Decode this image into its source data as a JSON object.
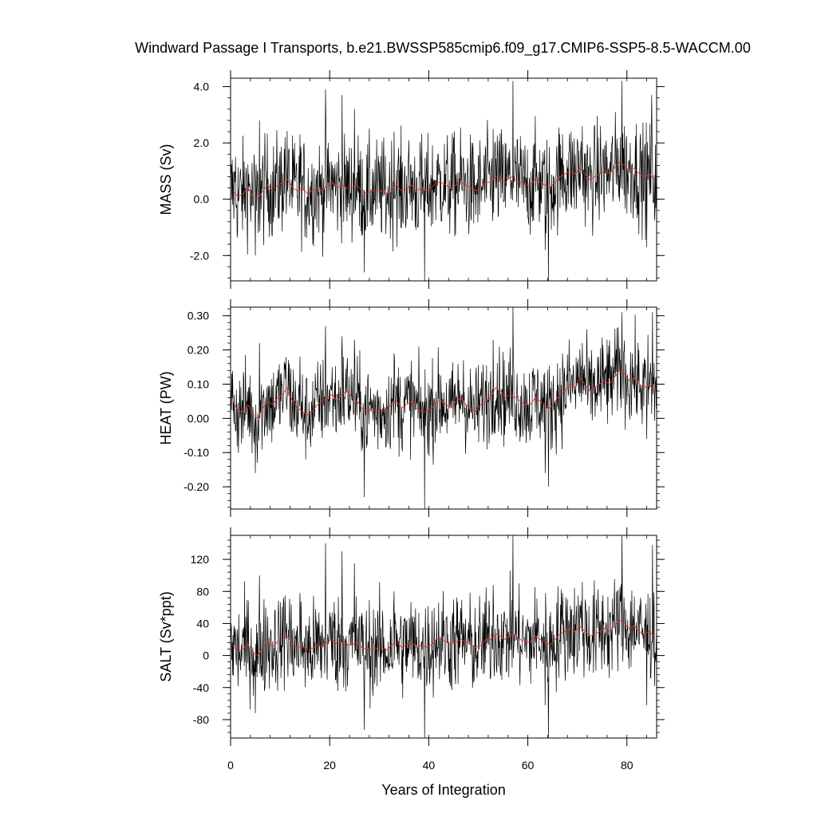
{
  "chart_data": {
    "title": "Windward Passage I Transports, b.e21.BWSSP585cmip6.f09_g17.CMIP6-SSP5-8.5-WACCM.00",
    "xlabel": "Years of Integration",
    "xlim": [
      0,
      86
    ],
    "x_ticks": [
      0,
      20,
      40,
      60,
      80
    ],
    "x_tick_labels": [
      "0",
      "20",
      "40",
      "60",
      "80"
    ],
    "series_styles": {
      "monthly": "#000000",
      "annual_mean": "#e0302a"
    },
    "panels": [
      {
        "type": "line",
        "name": "mass",
        "ylabel": "MASS (Sv)",
        "ylim": [
          -2.9,
          4.3
        ],
        "y_ticks": [
          -2.0,
          0.0,
          2.0,
          4.0
        ],
        "y_tick_labels": [
          "-2.0",
          "0.0",
          "2.0",
          "4.0"
        ],
        "annual_mean": [
          0.3,
          0.1,
          0.2,
          0.4,
          0.1,
          0.0,
          0.3,
          0.5,
          0.3,
          0.5,
          0.6,
          0.7,
          0.4,
          0.3,
          0.4,
          0.2,
          0.3,
          0.4,
          0.3,
          0.5,
          0.6,
          0.4,
          0.5,
          0.4,
          0.4,
          0.5,
          0.3,
          0.2,
          0.3,
          0.3,
          0.3,
          0.2,
          0.4,
          0.5,
          0.3,
          0.4,
          0.5,
          0.3,
          0.4,
          0.3,
          0.4,
          0.6,
          0.6,
          0.5,
          0.4,
          0.5,
          0.6,
          0.5,
          0.4,
          0.3,
          0.4,
          0.6,
          0.6,
          0.8,
          0.7,
          0.6,
          0.8,
          0.7,
          0.6,
          0.5,
          0.5,
          0.7,
          0.6,
          0.5,
          0.4,
          0.6,
          0.8,
          0.9,
          1.0,
          0.9,
          1.1,
          0.9,
          0.7,
          0.8,
          0.9,
          1.0,
          0.9,
          1.1,
          1.3,
          1.2,
          1.0,
          1.1,
          0.9,
          0.8,
          0.9,
          0.7
        ],
        "monthly_spikes": [
          {
            "x": 1.0,
            "y": 1.5
          },
          {
            "x": 5.0,
            "y": -2.0
          },
          {
            "x": 5.8,
            "y": 2.8
          },
          {
            "x": 11.0,
            "y": 2.2
          },
          {
            "x": 14.0,
            "y": 2.3
          },
          {
            "x": 19.2,
            "y": 3.9
          },
          {
            "x": 22.5,
            "y": 3.7
          },
          {
            "x": 25.0,
            "y": 3.2
          },
          {
            "x": 27.0,
            "y": -2.6
          },
          {
            "x": 33.0,
            "y": 2.4
          },
          {
            "x": 39.2,
            "y": -2.9
          },
          {
            "x": 45.0,
            "y": 2.2
          },
          {
            "x": 53.0,
            "y": 2.5
          },
          {
            "x": 57.0,
            "y": 4.2
          },
          {
            "x": 63.5,
            "y": -1.8
          },
          {
            "x": 64.2,
            "y": -2.9
          },
          {
            "x": 67.0,
            "y": 2.3
          },
          {
            "x": 71.0,
            "y": 2.6
          },
          {
            "x": 79.0,
            "y": 4.2
          },
          {
            "x": 84.0,
            "y": -1.7
          },
          {
            "x": 85.0,
            "y": 3.7
          }
        ],
        "monthly_spread": 0.9
      },
      {
        "type": "line",
        "name": "heat",
        "ylabel": "HEAT (PW)",
        "ylim": [
          -0.265,
          0.325
        ],
        "y_ticks": [
          -0.2,
          -0.1,
          0.0,
          0.1,
          0.2,
          0.3
        ],
        "y_tick_labels": [
          "-0.20",
          "-0.10",
          "0.00",
          "0.10",
          "0.20",
          "0.30"
        ],
        "annual_mean": [
          0.05,
          0.02,
          0.02,
          0.04,
          0.01,
          0.0,
          0.03,
          0.05,
          0.04,
          0.06,
          0.07,
          0.09,
          0.05,
          0.03,
          0.02,
          0.01,
          0.02,
          0.04,
          0.05,
          0.06,
          0.07,
          0.05,
          0.07,
          0.08,
          0.06,
          0.05,
          0.03,
          0.02,
          0.03,
          0.02,
          0.02,
          0.03,
          0.04,
          0.05,
          0.03,
          0.04,
          0.05,
          0.03,
          0.02,
          0.02,
          0.03,
          0.05,
          0.05,
          0.04,
          0.03,
          0.05,
          0.06,
          0.04,
          0.03,
          0.02,
          0.04,
          0.05,
          0.06,
          0.09,
          0.08,
          0.06,
          0.07,
          0.06,
          0.05,
          0.04,
          0.04,
          0.06,
          0.05,
          0.04,
          0.03,
          0.05,
          0.07,
          0.08,
          0.1,
          0.09,
          0.12,
          0.1,
          0.08,
          0.09,
          0.1,
          0.11,
          0.1,
          0.12,
          0.14,
          0.13,
          0.11,
          0.12,
          0.1,
          0.09,
          0.1,
          0.08
        ],
        "monthly_spikes": [
          {
            "x": 5.0,
            "y": -0.16
          },
          {
            "x": 5.8,
            "y": 0.22
          },
          {
            "x": 11.0,
            "y": 0.16
          },
          {
            "x": 14.0,
            "y": 0.18
          },
          {
            "x": 19.2,
            "y": 0.27
          },
          {
            "x": 22.5,
            "y": 0.24
          },
          {
            "x": 25.0,
            "y": 0.23
          },
          {
            "x": 27.0,
            "y": -0.23
          },
          {
            "x": 33.0,
            "y": 0.19
          },
          {
            "x": 39.2,
            "y": -0.265
          },
          {
            "x": 47.0,
            "y": 0.17
          },
          {
            "x": 53.0,
            "y": 0.23
          },
          {
            "x": 57.0,
            "y": 0.325
          },
          {
            "x": 63.5,
            "y": -0.16
          },
          {
            "x": 64.2,
            "y": -0.2
          },
          {
            "x": 71.0,
            "y": 0.22
          },
          {
            "x": 76.0,
            "y": 0.23
          },
          {
            "x": 79.0,
            "y": 0.31
          },
          {
            "x": 84.0,
            "y": -0.06
          },
          {
            "x": 85.2,
            "y": 0.31
          }
        ],
        "monthly_spread": 0.065
      },
      {
        "type": "line",
        "name": "salt",
        "ylabel": "SALT (Sv*ppt)",
        "ylim": [
          -103,
          150
        ],
        "y_ticks": [
          -80,
          -40,
          0,
          40,
          80,
          120
        ],
        "y_tick_labels": [
          "-80",
          "-40",
          "0",
          "40",
          "80",
          "120"
        ],
        "annual_mean": [
          12,
          5,
          8,
          14,
          4,
          0,
          10,
          17,
          11,
          17,
          20,
          24,
          14,
          10,
          12,
          6,
          9,
          13,
          11,
          17,
          20,
          14,
          17,
          14,
          13,
          17,
          10,
          7,
          9,
          9,
          10,
          7,
          13,
          17,
          10,
          13,
          17,
          10,
          13,
          10,
          13,
          20,
          20,
          17,
          13,
          17,
          20,
          17,
          13,
          10,
          13,
          20,
          20,
          27,
          24,
          20,
          27,
          24,
          20,
          17,
          17,
          24,
          20,
          17,
          13,
          20,
          27,
          30,
          34,
          30,
          37,
          30,
          24,
          27,
          30,
          34,
          30,
          37,
          44,
          40,
          34,
          37,
          30,
          27,
          30,
          24
        ],
        "monthly_spikes": [
          {
            "x": 5.0,
            "y": -72
          },
          {
            "x": 5.8,
            "y": 100
          },
          {
            "x": 11.0,
            "y": 75
          },
          {
            "x": 14.0,
            "y": 78
          },
          {
            "x": 19.2,
            "y": 140
          },
          {
            "x": 22.5,
            "y": 130
          },
          {
            "x": 25.0,
            "y": 115
          },
          {
            "x": 27.0,
            "y": -93
          },
          {
            "x": 33.0,
            "y": 80
          },
          {
            "x": 39.2,
            "y": -103
          },
          {
            "x": 45.0,
            "y": 70
          },
          {
            "x": 53.0,
            "y": 88
          },
          {
            "x": 57.0,
            "y": 150
          },
          {
            "x": 63.5,
            "y": -62
          },
          {
            "x": 64.2,
            "y": -103
          },
          {
            "x": 67.0,
            "y": 78
          },
          {
            "x": 71.0,
            "y": 92
          },
          {
            "x": 79.0,
            "y": 150
          },
          {
            "x": 84.0,
            "y": -62
          },
          {
            "x": 85.2,
            "y": 138
          }
        ],
        "monthly_spread": 30
      }
    ]
  }
}
